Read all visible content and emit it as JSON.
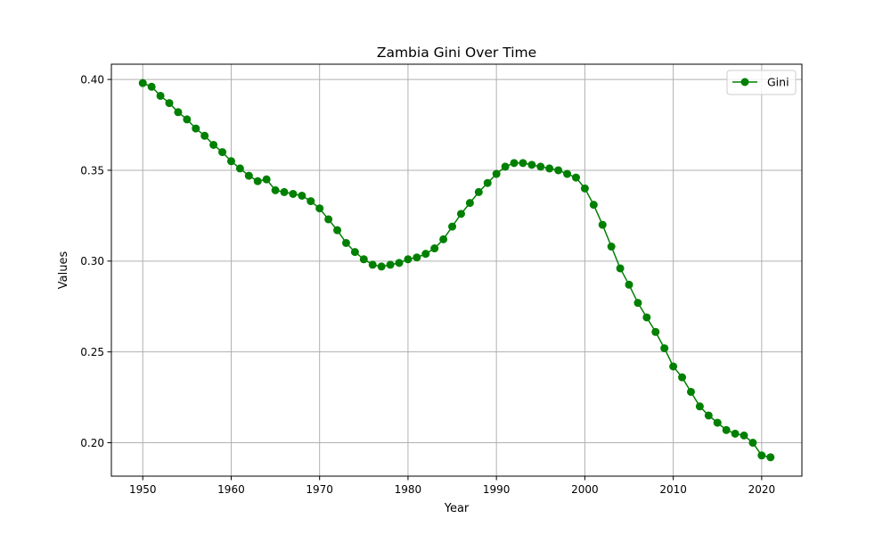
{
  "chart_data": {
    "type": "line",
    "title": "Zambia Gini Over Time",
    "xlabel": "Year",
    "ylabel": "Values",
    "xlim": [
      1946.45,
      2024.55
    ],
    "ylim": [
      0.1816,
      0.4084
    ],
    "x_ticks": [
      1950,
      1960,
      1970,
      1980,
      1990,
      2000,
      2010,
      2020
    ],
    "y_ticks": [
      0.2,
      0.25,
      0.3,
      0.35,
      0.4
    ],
    "y_tick_decimals": 2,
    "grid": true,
    "legend_position": "top-right",
    "series": [
      {
        "name": "Gini",
        "color": "#008000",
        "marker": "circle",
        "x": [
          1950,
          1951,
          1952,
          1953,
          1954,
          1955,
          1956,
          1957,
          1958,
          1959,
          1960,
          1961,
          1962,
          1963,
          1964,
          1965,
          1966,
          1967,
          1968,
          1969,
          1970,
          1971,
          1972,
          1973,
          1974,
          1975,
          1976,
          1977,
          1978,
          1979,
          1980,
          1981,
          1982,
          1983,
          1984,
          1985,
          1986,
          1987,
          1988,
          1989,
          1990,
          1991,
          1992,
          1993,
          1994,
          1995,
          1996,
          1997,
          1998,
          1999,
          2000,
          2001,
          2002,
          2003,
          2004,
          2005,
          2006,
          2007,
          2008,
          2009,
          2010,
          2011,
          2012,
          2013,
          2014,
          2015,
          2016,
          2017,
          2018,
          2019,
          2020,
          2021
        ],
        "values": [
          0.398,
          0.396,
          0.391,
          0.387,
          0.382,
          0.378,
          0.373,
          0.369,
          0.364,
          0.36,
          0.355,
          0.351,
          0.347,
          0.344,
          0.345,
          0.339,
          0.338,
          0.337,
          0.336,
          0.333,
          0.329,
          0.323,
          0.317,
          0.31,
          0.305,
          0.301,
          0.298,
          0.297,
          0.298,
          0.299,
          0.301,
          0.302,
          0.304,
          0.307,
          0.312,
          0.319,
          0.326,
          0.332,
          0.338,
          0.343,
          0.348,
          0.352,
          0.354,
          0.354,
          0.353,
          0.352,
          0.351,
          0.35,
          0.348,
          0.346,
          0.34,
          0.331,
          0.32,
          0.308,
          0.296,
          0.287,
          0.277,
          0.269,
          0.261,
          0.252,
          0.242,
          0.236,
          0.228,
          0.22,
          0.215,
          0.211,
          0.207,
          0.205,
          0.204,
          0.2,
          0.193,
          0.192
        ]
      }
    ]
  }
}
